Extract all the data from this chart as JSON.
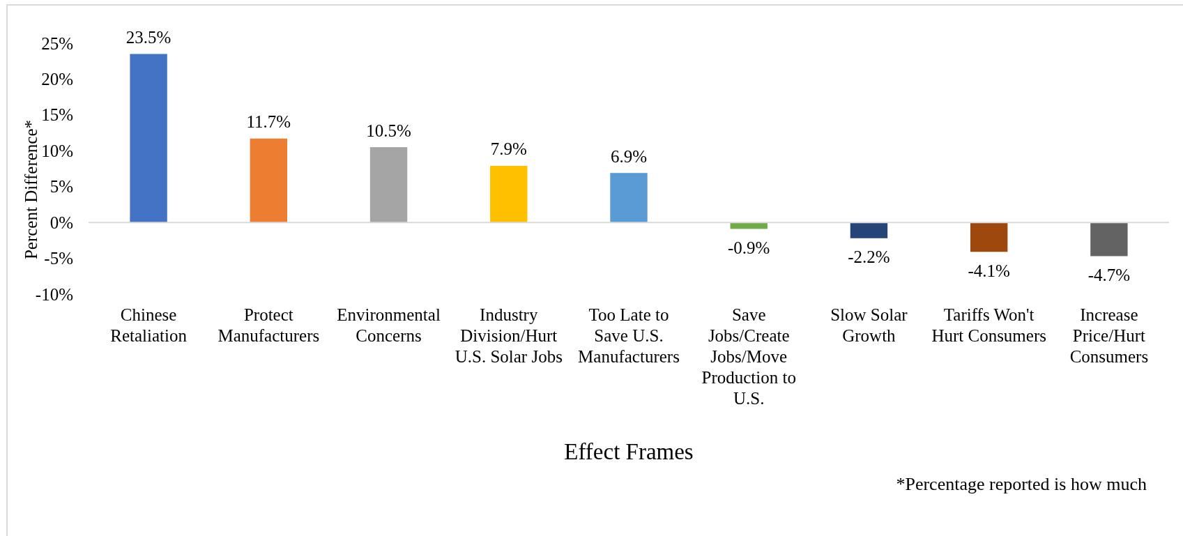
{
  "chart_data": {
    "type": "bar",
    "xlabel": "Effect Frames",
    "ylabel": "Percent Difference*",
    "categories": [
      "Chinese Retaliation",
      "Protect Manufacturers",
      "Environmental Concerns",
      "Industry Division/Hurt U.S. Solar Jobs",
      "Too Late to Save U.S. Manufacturers",
      "Save Jobs/Create Jobs/Move Production to U.S.",
      "Slow Solar Growth",
      "Tariffs Won't Hurt Consumers",
      "Increase Price/Hurt Consumers"
    ],
    "values": [
      23.5,
      11.7,
      10.5,
      7.9,
      6.9,
      -0.9,
      -2.2,
      -4.1,
      -4.7
    ],
    "colors": [
      "#4472c4",
      "#ed7d31",
      "#a5a5a5",
      "#ffc000",
      "#5b9bd5",
      "#70ad47",
      "#264478",
      "#9e480e",
      "#636363"
    ],
    "value_labels": [
      "23.5%",
      "11.7%",
      "10.5%",
      "7.9%",
      "6.9%",
      "-0.9%",
      "-2.2%",
      "-4.1%",
      "-4.7%"
    ],
    "ylim": [
      -10,
      25
    ],
    "yticks": [
      {
        "value": -10,
        "label": "-10%"
      },
      {
        "value": -5,
        "label": "-5%"
      },
      {
        "value": 0,
        "label": "0%"
      },
      {
        "value": 5,
        "label": "5%"
      },
      {
        "value": 10,
        "label": "10%"
      },
      {
        "value": 15,
        "label": "15%"
      },
      {
        "value": 20,
        "label": "20%"
      },
      {
        "value": 25,
        "label": "25%"
      }
    ],
    "annotations": [
      "*Percentage reported is how much"
    ]
  }
}
